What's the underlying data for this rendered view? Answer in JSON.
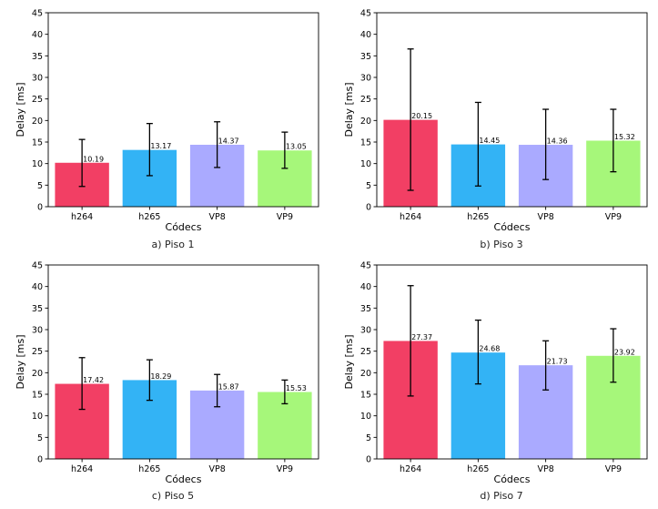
{
  "chart_data": [
    {
      "type": "bar",
      "title": "",
      "caption": "a) Piso 1",
      "xlabel": "Códecs",
      "ylabel": "Delay [ms]",
      "ylim": [
        0,
        45
      ],
      "yticks": [
        "0",
        "5",
        "10",
        "15",
        "20",
        "25",
        "30",
        "35",
        "40",
        "45"
      ],
      "categories": [
        "h264",
        "h265",
        "VP8",
        "VP9"
      ],
      "values": [
        10.19,
        13.17,
        14.37,
        13.05
      ],
      "labels": [
        "10.19",
        "13.17",
        "14.37",
        "13.05"
      ],
      "err_low": [
        4.7,
        7.2,
        9.1,
        8.9
      ],
      "err_high": [
        15.6,
        19.3,
        19.7,
        17.3
      ],
      "colors": [
        "#f23f64",
        "#33b3f5",
        "#aaaaff",
        "#a6f77a"
      ]
    },
    {
      "type": "bar",
      "title": "",
      "caption": "b) Piso 3",
      "xlabel": "Códecs",
      "ylabel": "Delay [ms]",
      "ylim": [
        0,
        45
      ],
      "yticks": [
        "0",
        "5",
        "10",
        "15",
        "20",
        "25",
        "30",
        "35",
        "40",
        "45"
      ],
      "categories": [
        "h264",
        "h265",
        "VP8",
        "VP9"
      ],
      "values": [
        20.15,
        14.45,
        14.36,
        15.32
      ],
      "labels": [
        "20.15",
        "14.45",
        "14.36",
        "15.32"
      ],
      "err_low": [
        3.8,
        4.8,
        6.3,
        8.1
      ],
      "err_high": [
        36.6,
        24.2,
        22.6,
        22.6
      ],
      "colors": [
        "#f23f64",
        "#33b3f5",
        "#aaaaff",
        "#a6f77a"
      ]
    },
    {
      "type": "bar",
      "title": "",
      "caption": "c) Piso 5",
      "xlabel": "Códecs",
      "ylabel": "Delay [ms]",
      "ylim": [
        0,
        45
      ],
      "yticks": [
        "0",
        "5",
        "10",
        "15",
        "20",
        "25",
        "30",
        "35",
        "40",
        "45"
      ],
      "categories": [
        "h264",
        "h265",
        "VP8",
        "VP9"
      ],
      "values": [
        17.42,
        18.29,
        15.87,
        15.53
      ],
      "labels": [
        "17.42",
        "18.29",
        "15.87",
        "15.53"
      ],
      "err_low": [
        11.5,
        13.6,
        12.1,
        12.8
      ],
      "err_high": [
        23.5,
        23.0,
        19.6,
        18.3
      ],
      "colors": [
        "#f23f64",
        "#33b3f5",
        "#aaaaff",
        "#a6f77a"
      ]
    },
    {
      "type": "bar",
      "title": "",
      "caption": "d) Piso 7",
      "xlabel": "Códecs",
      "ylabel": "Delay [ms]",
      "ylim": [
        0,
        45
      ],
      "yticks": [
        "0",
        "5",
        "10",
        "15",
        "20",
        "25",
        "30",
        "35",
        "40",
        "45"
      ],
      "categories": [
        "h264",
        "h265",
        "VP8",
        "VP9"
      ],
      "values": [
        27.37,
        24.68,
        21.73,
        23.92
      ],
      "labels": [
        "27.37",
        "24.68",
        "21.73",
        "23.92"
      ],
      "err_low": [
        14.6,
        17.4,
        16.0,
        17.8
      ],
      "err_high": [
        40.2,
        32.2,
        27.4,
        30.2
      ],
      "colors": [
        "#f23f64",
        "#33b3f5",
        "#aaaaff",
        "#a6f77a"
      ]
    }
  ]
}
